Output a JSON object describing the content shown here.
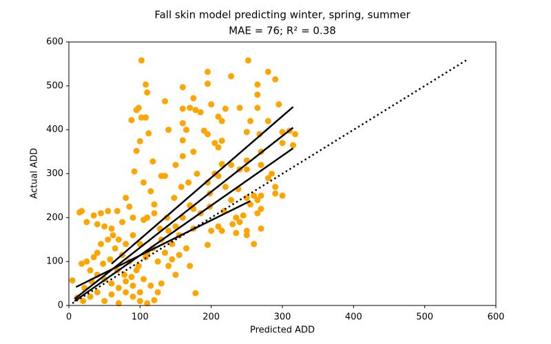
{
  "chart_data": {
    "type": "scatter",
    "title": "Fall skin model predicting winter, spring, summer",
    "subtitle": "MAE = 76; R² = 0.38",
    "xlabel": "Predicted ADD",
    "ylabel": "Actual ADD",
    "xlim": [
      0,
      600
    ],
    "ylim": [
      0,
      600
    ],
    "xticks": [
      0,
      100,
      200,
      300,
      400,
      500,
      600
    ],
    "yticks": [
      0,
      100,
      200,
      300,
      400,
      500,
      600
    ],
    "points": {
      "color": "#ffa500",
      "x": [
        102,
        252,
        195,
        280,
        108,
        160,
        195,
        290,
        228,
        265,
        110,
        175,
        200,
        185,
        95,
        98,
        135,
        170,
        160,
        265,
        295,
        265,
        240,
        220,
        210,
        215,
        178,
        88,
        102,
        108,
        112,
        100,
        140,
        160,
        165,
        160,
        190,
        195,
        205,
        215,
        210,
        255,
        250,
        268,
        280,
        300,
        310,
        318,
        315,
        300,
        270,
        250,
        240,
        228,
        215,
        205,
        195,
        180,
        175,
        160,
        150,
        130,
        135,
        95,
        118,
        92,
        105,
        210,
        220,
        250,
        270,
        285,
        290,
        280,
        300,
        290,
        270,
        260,
        265,
        250,
        255,
        270,
        265,
        245,
        240,
        235,
        230,
        250,
        270,
        260,
        250,
        235,
        210,
        215,
        200,
        195,
        175,
        165,
        155,
        170,
        178,
        120,
        115,
        120,
        110,
        105,
        80,
        85,
        90,
        75,
        68,
        55,
        45,
        35,
        25,
        18,
        15,
        40,
        50,
        60,
        62,
        70,
        80,
        55,
        45,
        40,
        35,
        25,
        18,
        30,
        40,
        50,
        60,
        70,
        80,
        90,
        100,
        110,
        120,
        125,
        115,
        105,
        95,
        85,
        75,
        65,
        130,
        140,
        150,
        145,
        135,
        125,
        140,
        150,
        130,
        110,
        100,
        90,
        20,
        30,
        40,
        50,
        60,
        70,
        80,
        90,
        100,
        5,
        12,
        22,
        32,
        48,
        58,
        68,
        78,
        88,
        98,
        108,
        118,
        128,
        138,
        148,
        158,
        168,
        185,
        198,
        218,
        228,
        238,
        198,
        170,
        160,
        145,
        155,
        175
      ],
      "y": [
        558,
        558,
        532,
        532,
        503,
        497,
        505,
        515,
        522,
        503,
        485,
        472,
        458,
        440,
        445,
        450,
        465,
        450,
        448,
        480,
        458,
        450,
        450,
        448,
        430,
        420,
        445,
        422,
        428,
        428,
        392,
        374,
        400,
        415,
        400,
        376,
        398,
        390,
        370,
        375,
        360,
        420,
        395,
        390,
        420,
        395,
        398,
        390,
        365,
        370,
        350,
        330,
        310,
        320,
        322,
        300,
        280,
        300,
        350,
        340,
        320,
        295,
        295,
        352,
        328,
        305,
        280,
        295,
        270,
        310,
        320,
        300,
        270,
        290,
        250,
        255,
        250,
        250,
        240,
        245,
        230,
        220,
        210,
        205,
        190,
        200,
        185,
        170,
        175,
        140,
        160,
        165,
        180,
        170,
        170,
        138,
        175,
        130,
        115,
        90,
        28,
        230,
        260,
        210,
        200,
        195,
        245,
        225,
        200,
        190,
        215,
        215,
        210,
        205,
        190,
        215,
        212,
        185,
        180,
        175,
        160,
        150,
        140,
        150,
        140,
        120,
        110,
        100,
        95,
        80,
        70,
        60,
        50,
        40,
        30,
        20,
        10,
        5,
        12,
        30,
        45,
        60,
        80,
        100,
        115,
        130,
        150,
        170,
        180,
        140,
        120,
        100,
        90,
        70,
        50,
        120,
        140,
        160,
        10,
        20,
        30,
        10,
        25,
        5,
        55,
        45,
        30,
        57,
        18,
        40,
        55,
        95,
        105,
        80,
        70,
        65,
        90,
        110,
        130,
        175,
        200,
        245,
        270,
        280,
        210,
        225,
        215,
        240,
        265,
        255,
        228,
        200,
        105,
        160,
        220
      ]
    },
    "lines": [
      {
        "x": [
          60,
          315
        ],
        "y": [
          95,
          452
        ],
        "color": "#000000",
        "linestyle": "solid"
      },
      {
        "x": [
          8,
          315
        ],
        "y": [
          15,
          405
        ],
        "color": "#000000",
        "linestyle": "solid"
      },
      {
        "x": [
          8,
          315
        ],
        "y": [
          10,
          358
        ],
        "color": "#000000",
        "linestyle": "solid"
      },
      {
        "x": [
          10,
          255
        ],
        "y": [
          42,
          238
        ],
        "color": "#000000",
        "linestyle": "solid"
      },
      {
        "x": [
          5,
          560
        ],
        "y": [
          5,
          560
        ],
        "color": "#000000",
        "linestyle": "dotted"
      }
    ]
  }
}
